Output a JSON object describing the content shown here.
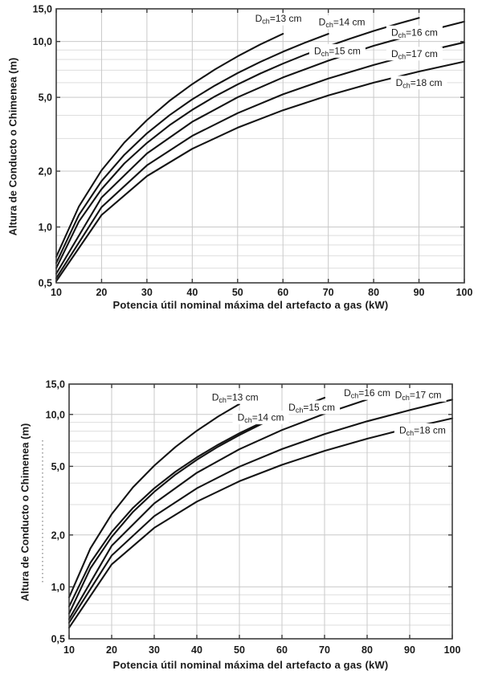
{
  "colors": {
    "curve": "#141414",
    "axis": "#3c3c3c",
    "grid_major": "#c9c9c9",
    "grid_minor": "#dedede",
    "text": "#1a1a1a",
    "dotted_line": "#7a7a7a",
    "background": "#ffffff"
  },
  "curve_label_prefix": "D",
  "curve_label_subscript": "ch",
  "decor": {
    "dotted_guide_line": true
  },
  "charts": [
    {
      "name": "top-chart",
      "chart_data": {
        "type": "line",
        "xlabel": "Potencia útil nominal máxima del artefacto a gas  (kW)",
        "ylabel": "Altura de Conducto o Chimenea (m)",
        "x_scale": "linear",
        "y_scale": "log",
        "xlim": [
          10,
          100
        ],
        "ylim": [
          0.5,
          15
        ],
        "grid": true,
        "x_ticks": [
          10,
          20,
          30,
          40,
          50,
          60,
          70,
          80,
          90,
          100
        ],
        "x_tick_labels": [
          "10",
          "20",
          "30",
          "40",
          "50",
          "60",
          "70",
          "80",
          "90",
          "100"
        ],
        "y_ticks": [
          0.5,
          1,
          2,
          5,
          10,
          15
        ],
        "y_tick_labels": [
          "0,5",
          "1,0",
          "2,0",
          "5,0",
          "10,0",
          "15,0"
        ],
        "y_minor_grid": [
          0.6,
          0.7,
          0.8,
          0.9,
          1,
          2,
          3,
          4,
          5,
          6,
          7,
          8,
          9,
          10
        ],
        "series": [
          {
            "name": "Dch=13 cm",
            "diameter_cm": 13,
            "label_text": "=13 cm",
            "label_pos": {
              "x": 59,
              "y": 13.3
            },
            "points": [
              [
                10,
                0.69
              ],
              [
                15,
                1.29
              ],
              [
                20,
                2.02
              ],
              [
                25,
                2.85
              ],
              [
                30,
                3.77
              ],
              [
                35,
                4.79
              ],
              [
                40,
                5.89
              ],
              [
                45,
                7.07
              ],
              [
                50,
                8.32
              ],
              [
                55,
                9.64
              ],
              [
                60,
                11.0
              ]
            ]
          },
          {
            "name": "Dch=14 cm",
            "diameter_cm": 14,
            "label_text": "=14 cm",
            "label_pos": {
              "x": 73,
              "y": 12.7
            },
            "points": [
              [
                10,
                0.64
              ],
              [
                15,
                1.16
              ],
              [
                20,
                1.77
              ],
              [
                25,
                2.45
              ],
              [
                30,
                3.2
              ],
              [
                35,
                4.01
              ],
              [
                40,
                4.88
              ],
              [
                45,
                5.79
              ],
              [
                50,
                6.76
              ],
              [
                55,
                7.76
              ],
              [
                60,
                8.81
              ],
              [
                65,
                9.89
              ],
              [
                70,
                11.0
              ]
            ]
          },
          {
            "name": "Dch=15 cm",
            "diameter_cm": 15,
            "label_text": "=15 cm",
            "label_pos": {
              "x": 72,
              "y": 8.9
            },
            "points": [
              [
                10,
                0.6
              ],
              [
                15,
                1.07
              ],
              [
                20,
                1.6
              ],
              [
                25,
                2.2
              ],
              [
                30,
                2.84
              ],
              [
                35,
                3.54
              ],
              [
                40,
                4.28
              ],
              [
                45,
                5.06
              ],
              [
                50,
                5.87
              ],
              [
                55,
                6.72
              ],
              [
                60,
                7.6
              ],
              [
                65,
                8.51
              ],
              [
                70,
                9.43
              ],
              [
                75,
                10.4
              ],
              [
                80,
                11.4
              ],
              [
                85,
                12.4
              ],
              [
                90,
                13.4
              ]
            ]
          },
          {
            "name": "Dch=16 cm",
            "diameter_cm": 16,
            "label_text": "=16 cm",
            "label_pos": {
              "x": 89,
              "y": 11.2
            },
            "points": [
              [
                10,
                0.56
              ],
              [
                20,
                1.44
              ],
              [
                30,
                2.49
              ],
              [
                40,
                3.69
              ],
              [
                50,
                5.0
              ],
              [
                60,
                6.4
              ],
              [
                70,
                7.88
              ],
              [
                80,
                9.48
              ],
              [
                90,
                11.1
              ],
              [
                100,
                12.8
              ]
            ]
          },
          {
            "name": "Dch=17 cm",
            "diameter_cm": 17,
            "label_text": "=17 cm",
            "label_pos": {
              "x": 89,
              "y": 8.6
            },
            "points": [
              [
                10,
                0.53
              ],
              [
                20,
                1.28
              ],
              [
                30,
                2.15
              ],
              [
                40,
                3.1
              ],
              [
                50,
                4.11
              ],
              [
                60,
                5.19
              ],
              [
                70,
                6.32
              ],
              [
                80,
                7.47
              ],
              [
                90,
                8.69
              ],
              [
                100,
                9.9
              ]
            ]
          },
          {
            "name": "Dch=18 cm",
            "diameter_cm": 18,
            "label_text": "=18 cm",
            "label_pos": {
              "x": 90,
              "y": 6.0
            },
            "points": [
              [
                10,
                0.51
              ],
              [
                20,
                1.16
              ],
              [
                30,
                1.88
              ],
              [
                40,
                2.64
              ],
              [
                50,
                3.43
              ],
              [
                60,
                4.26
              ],
              [
                70,
                5.12
              ],
              [
                80,
                6.0
              ],
              [
                90,
                6.89
              ],
              [
                100,
                7.8
              ]
            ]
          }
        ]
      }
    },
    {
      "name": "bottom-chart",
      "chart_data": {
        "type": "line",
        "xlabel": "Potencia útil nominal máxima del artefacto a gas  (kW)",
        "ylabel": "Altura de Conducto o Chimenea (m)",
        "x_scale": "linear",
        "y_scale": "log",
        "xlim": [
          10,
          100
        ],
        "ylim": [
          0.5,
          15
        ],
        "grid": true,
        "x_ticks": [
          10,
          20,
          30,
          40,
          50,
          60,
          70,
          80,
          90,
          100
        ],
        "x_tick_labels": [
          "10",
          "20",
          "30",
          "40",
          "50",
          "60",
          "70",
          "80",
          "90",
          "100"
        ],
        "y_ticks": [
          0.5,
          1,
          2,
          5,
          10,
          15
        ],
        "y_tick_labels": [
          "0,5",
          "1,0",
          "2,0",
          "5,0",
          "10,0",
          "15,0"
        ],
        "y_minor_grid": [
          0.6,
          0.7,
          0.8,
          0.9,
          1,
          2,
          3,
          4,
          5,
          6,
          7,
          8,
          9,
          10
        ],
        "series": [
          {
            "name": "Dch=13 cm",
            "diameter_cm": 13,
            "label_text": "=13 cm",
            "label_pos": {
              "x": 49,
              "y": 12.6
            },
            "points": [
              [
                10,
                0.87
              ],
              [
                15,
                1.67
              ],
              [
                20,
                2.64
              ],
              [
                25,
                3.78
              ],
              [
                30,
                5.05
              ],
              [
                35,
                6.48
              ],
              [
                40,
                8.04
              ],
              [
                45,
                9.72
              ],
              [
                50,
                11.5
              ]
            ]
          },
          {
            "name": "Dch=14 cm",
            "diameter_cm": 14,
            "label_text": "=14 cm",
            "label_pos": {
              "x": 55,
              "y": 9.6
            },
            "points": [
              [
                10,
                0.77
              ],
              [
                15,
                1.38
              ],
              [
                20,
                2.08
              ],
              [
                25,
                2.87
              ],
              [
                30,
                3.73
              ],
              [
                35,
                4.66
              ],
              [
                40,
                5.64
              ],
              [
                45,
                6.68
              ],
              [
                50,
                7.78
              ],
              [
                55,
                8.92
              ],
              [
                60,
                10.1
              ]
            ]
          },
          {
            "name": "Dch=15 cm",
            "diameter_cm": 15,
            "label_text": "=15 cm",
            "label_pos": {
              "x": 67,
              "y": 11.0
            },
            "points": [
              [
                10,
                0.7
              ],
              [
                15,
                1.28
              ],
              [
                20,
                1.95
              ],
              [
                25,
                2.72
              ],
              [
                30,
                3.56
              ],
              [
                35,
                4.48
              ],
              [
                40,
                5.46
              ],
              [
                45,
                6.5
              ],
              [
                50,
                7.6
              ],
              [
                55,
                8.75
              ],
              [
                60,
                9.95
              ],
              [
                65,
                11.2
              ],
              [
                70,
                12.5
              ]
            ]
          },
          {
            "name": "Dch=16 cm",
            "diameter_cm": 16,
            "label_text": "=16 cm",
            "label_pos": {
              "x": 80,
              "y": 13.3
            },
            "points": [
              [
                10,
                0.65
              ],
              [
                20,
                1.73
              ],
              [
                30,
                3.05
              ],
              [
                40,
                4.59
              ],
              [
                50,
                6.28
              ],
              [
                60,
                8.12
              ],
              [
                70,
                10.1
              ],
              [
                80,
                12.2
              ]
            ]
          },
          {
            "name": "Dch=17 cm",
            "diameter_cm": 17,
            "label_text": "=17 cm",
            "label_pos": {
              "x": 92,
              "y": 13.0
            },
            "points": [
              [
                10,
                0.62
              ],
              [
                20,
                1.52
              ],
              [
                30,
                2.57
              ],
              [
                40,
                3.73
              ],
              [
                50,
                4.98
              ],
              [
                60,
                6.3
              ],
              [
                70,
                7.69
              ],
              [
                80,
                9.13
              ],
              [
                90,
                10.6
              ],
              [
                100,
                12.2
              ]
            ]
          },
          {
            "name": "Dch=18 cm",
            "diameter_cm": 18,
            "label_text": "=18 cm",
            "label_pos": {
              "x": 93,
              "y": 8.1
            },
            "points": [
              [
                10,
                0.58
              ],
              [
                20,
                1.35
              ],
              [
                30,
                2.2
              ],
              [
                40,
                3.12
              ],
              [
                50,
                4.1
              ],
              [
                60,
                5.1
              ],
              [
                70,
                6.15
              ],
              [
                80,
                7.23
              ],
              [
                90,
                8.35
              ],
              [
                100,
                9.5
              ]
            ]
          }
        ]
      }
    }
  ]
}
